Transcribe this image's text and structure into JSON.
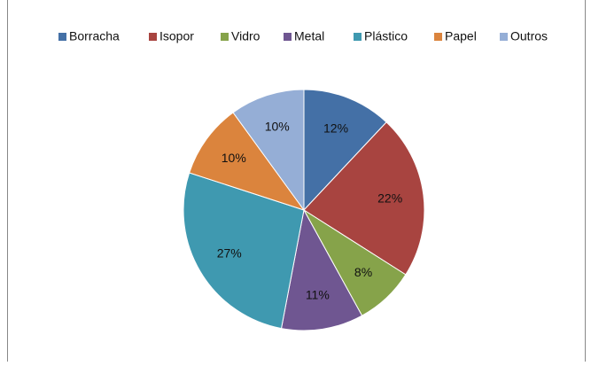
{
  "chart_data": {
    "type": "pie",
    "categories": [
      "Borracha",
      "Isopor",
      "Vidro",
      "Metal",
      "Plástico",
      "Papel",
      "Outros"
    ],
    "values": [
      12,
      22,
      8,
      11,
      27,
      10,
      10
    ],
    "value_labels": [
      "12%",
      "22%",
      "8%",
      "11%",
      "27%",
      "10%",
      "10%"
    ],
    "colors": [
      "#4470a6",
      "#a84440",
      "#86a34a",
      "#6f5691",
      "#3f99b0",
      "#db843d",
      "#95aed6"
    ],
    "legend": "top"
  }
}
